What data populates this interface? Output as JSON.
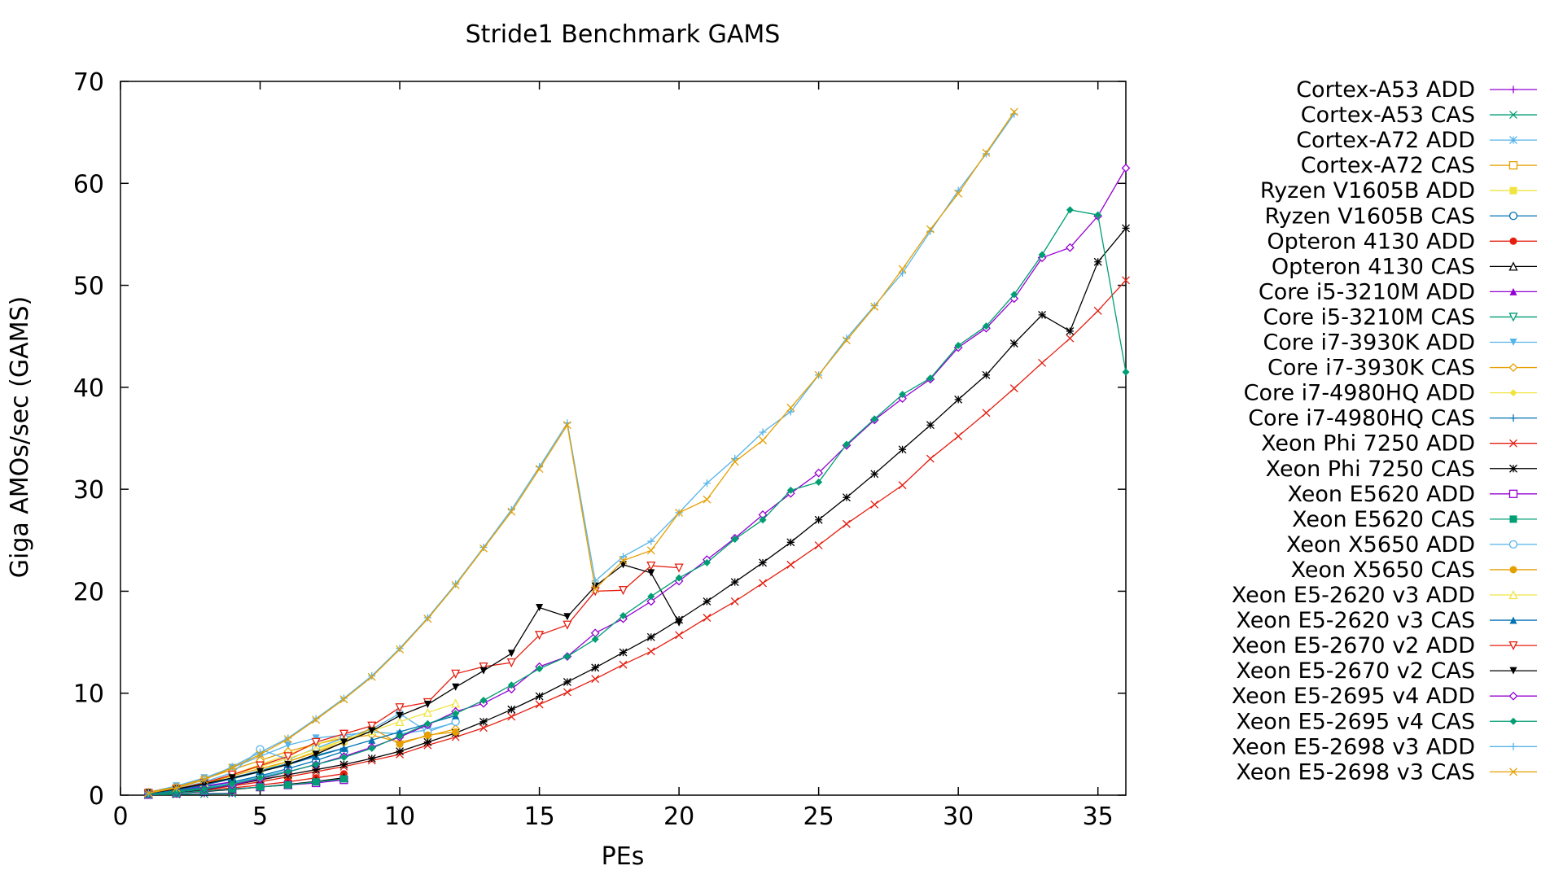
{
  "chart_data": {
    "type": "line",
    "title": "Stride1 Benchmark GAMS",
    "xlabel": "PEs",
    "ylabel": "Giga AMOs/sec (GAMS)",
    "xlim": [
      0,
      36
    ],
    "ylim": [
      0,
      70
    ],
    "xticks": [
      0,
      5,
      10,
      15,
      20,
      25,
      30,
      35
    ],
    "yticks": [
      0,
      10,
      20,
      30,
      40,
      50,
      60,
      70
    ],
    "grid": false,
    "legend_position": "right",
    "series": [
      {
        "name": "Cortex-A53 ADD",
        "color": "#9400d3",
        "marker": "plus",
        "x": [
          1,
          2,
          3,
          4
        ],
        "y": [
          0.05,
          0.1,
          0.15,
          0.2
        ]
      },
      {
        "name": "Cortex-A53 CAS",
        "color": "#009e73",
        "marker": "cross",
        "x": [
          1,
          2,
          3,
          4
        ],
        "y": [
          0.04,
          0.08,
          0.12,
          0.16
        ]
      },
      {
        "name": "Cortex-A72 ADD",
        "color": "#56b4e9",
        "marker": "star",
        "x": [
          1,
          2,
          3,
          4,
          5,
          6
        ],
        "y": [
          0.1,
          0.3,
          0.7,
          1.2,
          1.8,
          2.4
        ]
      },
      {
        "name": "Cortex-A72 CAS",
        "color": "#e69f00",
        "marker": "open-square",
        "x": [
          1,
          2,
          3,
          4,
          5,
          6
        ],
        "y": [
          0.1,
          0.3,
          0.6,
          1.0,
          1.5,
          2.0
        ]
      },
      {
        "name": "Ryzen V1605B ADD",
        "color": "#f0e442",
        "marker": "filled-square",
        "x": [
          1,
          2,
          3,
          4,
          5,
          6,
          7,
          8
        ],
        "y": [
          0.2,
          0.5,
          1.0,
          1.6,
          2.4,
          3.3,
          4.3,
          5.4
        ]
      },
      {
        "name": "Ryzen V1605B CAS",
        "color": "#0072b2",
        "marker": "open-circle",
        "x": [
          1,
          2,
          3,
          4,
          5,
          6,
          7,
          8
        ],
        "y": [
          0.15,
          0.4,
          0.8,
          1.3,
          1.9,
          2.6,
          3.4,
          4.3
        ]
      },
      {
        "name": "Opteron 4130 ADD",
        "color": "#e51e10",
        "marker": "filled-circle",
        "x": [
          1,
          2,
          3,
          4,
          5,
          6,
          7,
          8
        ],
        "y": [
          0.1,
          0.25,
          0.45,
          0.7,
          1.0,
          1.3,
          1.7,
          2.1
        ]
      },
      {
        "name": "Opteron 4130 CAS",
        "color": "#000000",
        "marker": "open-triangle",
        "x": [
          1,
          2,
          3,
          4,
          5,
          6,
          7,
          8
        ],
        "y": [
          0.08,
          0.2,
          0.35,
          0.55,
          0.8,
          1.05,
          1.35,
          1.7
        ]
      },
      {
        "name": "Core i5-3210M ADD",
        "color": "#9400d3",
        "marker": "filled-triangle",
        "x": [
          1,
          2,
          3,
          4
        ],
        "y": [
          0.2,
          0.5,
          0.9,
          1.3
        ]
      },
      {
        "name": "Core i5-3210M CAS",
        "color": "#009e73",
        "marker": "open-down-triangle",
        "x": [
          1,
          2,
          3,
          4
        ],
        "y": [
          0.15,
          0.4,
          0.7,
          1.0
        ]
      },
      {
        "name": "Core i7-3930K ADD",
        "color": "#56b4e9",
        "marker": "filled-down-triangle",
        "x": [
          1,
          2,
          3,
          4,
          5,
          6,
          7,
          8,
          9,
          10,
          11,
          12
        ],
        "y": [
          0.3,
          0.9,
          1.7,
          2.7,
          3.8,
          4.9,
          5.6,
          5.9,
          6.2,
          6.0,
          6.4,
          7.1
        ]
      },
      {
        "name": "Core i7-3930K CAS",
        "color": "#e69f00",
        "marker": "open-diamond",
        "x": [
          1,
          2,
          3,
          4,
          5,
          6,
          7,
          8,
          9,
          10,
          11,
          12
        ],
        "y": [
          0.3,
          0.8,
          1.6,
          2.5,
          3.4,
          4.3,
          5.0,
          5.6,
          5.9,
          5.2,
          5.8,
          6.5
        ]
      },
      {
        "name": "Core i7-4980HQ ADD",
        "color": "#f0e442",
        "marker": "filled-diamond",
        "x": [
          1,
          2,
          3,
          4,
          5,
          6,
          7,
          8
        ],
        "y": [
          0.2,
          0.6,
          1.2,
          2.0,
          3.0,
          4.0,
          5.0,
          5.8
        ]
      },
      {
        "name": "Core i7-4980HQ CAS",
        "color": "#0072b2",
        "marker": "plus",
        "x": [
          1,
          2,
          3,
          4,
          5,
          6,
          7,
          8
        ],
        "y": [
          0.15,
          0.5,
          1.0,
          1.7,
          2.4,
          3.1,
          3.9,
          4.6
        ]
      },
      {
        "name": "Xeon Phi 7250 ADD",
        "color": "#e51e10",
        "marker": "cross",
        "x": [
          1,
          2,
          3,
          4,
          5,
          6,
          7,
          8,
          9,
          10,
          11,
          12,
          13,
          14,
          15,
          16,
          17,
          18,
          19,
          20,
          21,
          22,
          23,
          24,
          25,
          26,
          27,
          28,
          29,
          30,
          31,
          32,
          33,
          34,
          35,
          36
        ],
        "y": [
          0.05,
          0.2,
          0.5,
          0.9,
          1.3,
          1.8,
          2.3,
          2.8,
          3.4,
          4.0,
          4.9,
          5.7,
          6.6,
          7.7,
          8.9,
          10.1,
          11.4,
          12.8,
          14.1,
          15.7,
          17.4,
          19.0,
          20.8,
          22.6,
          24.5,
          26.6,
          28.5,
          30.4,
          33.0,
          35.2,
          37.5,
          39.9,
          42.4,
          44.8,
          47.5,
          50.5
        ]
      },
      {
        "name": "Xeon Phi 7250 CAS",
        "color": "#000000",
        "marker": "star",
        "x": [
          1,
          2,
          3,
          4,
          5,
          6,
          7,
          8,
          9,
          10,
          11,
          12,
          13,
          14,
          15,
          16,
          17,
          18,
          19,
          20,
          21,
          22,
          23,
          24,
          25,
          26,
          27,
          28,
          29,
          30,
          31,
          32,
          33,
          34,
          35,
          36
        ],
        "y": [
          0.05,
          0.25,
          0.55,
          1.0,
          1.5,
          2.0,
          2.5,
          3.0,
          3.6,
          4.3,
          5.2,
          6.1,
          7.2,
          8.4,
          9.7,
          11.1,
          12.5,
          14.0,
          15.5,
          17.2,
          19.0,
          20.9,
          22.8,
          24.8,
          27.0,
          29.2,
          31.5,
          33.9,
          36.3,
          38.8,
          41.2,
          44.3,
          47.1,
          45.5,
          52.3,
          55.6
        ]
      },
      {
        "name": "Xeon E5620 ADD",
        "color": "#9400d3",
        "marker": "open-square",
        "x": [
          1,
          2,
          3,
          4,
          5,
          6,
          7,
          8
        ],
        "y": [
          0.05,
          0.2,
          0.4,
          0.6,
          0.8,
          1.0,
          1.2,
          1.5
        ]
      },
      {
        "name": "Xeon E5620 CAS",
        "color": "#009e73",
        "marker": "filled-square",
        "x": [
          1,
          2,
          3,
          4,
          5,
          6,
          7,
          8
        ],
        "y": [
          0.05,
          0.2,
          0.4,
          0.6,
          0.8,
          1.0,
          1.3,
          1.6
        ]
      },
      {
        "name": "Xeon X5650 ADD",
        "color": "#56b4e9",
        "marker": "open-circle",
        "x": [
          1,
          2,
          3,
          4,
          5,
          6,
          7,
          8,
          9,
          10,
          11,
          12
        ],
        "y": [
          0.2,
          0.6,
          1.3,
          2.2,
          4.5,
          3.5,
          4.6,
          5.6,
          6.5,
          8.0,
          6.2,
          7.2
        ]
      },
      {
        "name": "Xeon X5650 CAS",
        "color": "#e69f00",
        "marker": "filled-circle",
        "x": [
          1,
          2,
          3,
          4,
          5,
          6,
          7,
          8,
          9,
          10,
          11,
          12
        ],
        "y": [
          0.2,
          0.5,
          1.1,
          1.9,
          2.6,
          3.3,
          4.2,
          5.2,
          6.6,
          5.0,
          5.9,
          6.2
        ]
      },
      {
        "name": "Xeon E5-2620 v3 ADD",
        "color": "#f0e442",
        "marker": "open-triangle",
        "x": [
          1,
          2,
          3,
          4,
          5,
          6,
          7,
          8,
          9,
          10,
          11,
          12
        ],
        "y": [
          0.2,
          0.6,
          1.2,
          2.0,
          2.8,
          3.6,
          4.5,
          5.4,
          6.3,
          7.2,
          8.1,
          9.0
        ]
      },
      {
        "name": "Xeon E5-2620 v3 CAS",
        "color": "#0072b2",
        "marker": "filled-triangle",
        "x": [
          1,
          2,
          3,
          4,
          5,
          6,
          7,
          8,
          9,
          10,
          11,
          12
        ],
        "y": [
          0.15,
          0.5,
          1.0,
          1.6,
          2.3,
          3.0,
          3.8,
          4.6,
          5.4,
          6.2,
          7.0,
          7.8
        ]
      },
      {
        "name": "Xeon E5-2670 v2 ADD",
        "color": "#e51e10",
        "marker": "open-down-triangle",
        "x": [
          1,
          2,
          3,
          4,
          5,
          6,
          7,
          8,
          9,
          10,
          11,
          12,
          13,
          14,
          15,
          16,
          17,
          18,
          19,
          20
        ],
        "y": [
          0.2,
          0.6,
          1.2,
          2.0,
          2.9,
          3.8,
          5.2,
          6.0,
          6.8,
          8.6,
          9.1,
          11.9,
          12.6,
          13.0,
          15.7,
          16.7,
          20.0,
          20.1,
          22.5,
          22.3
        ]
      },
      {
        "name": "Xeon E5-2670 v2 CAS",
        "color": "#000000",
        "marker": "filled-down-triangle",
        "x": [
          1,
          2,
          3,
          4,
          5,
          6,
          7,
          8,
          9,
          10,
          11,
          12,
          13,
          14,
          15,
          16,
          17,
          18,
          19,
          20
        ],
        "y": [
          0.2,
          0.6,
          1.1,
          1.7,
          2.3,
          3.0,
          4.0,
          5.2,
          6.3,
          7.8,
          8.9,
          10.6,
          12.2,
          13.9,
          18.4,
          17.5,
          20.5,
          22.6,
          21.8,
          16.9
        ]
      },
      {
        "name": "Xeon E5-2695 v4 ADD",
        "color": "#9400d3",
        "marker": "open-diamond",
        "x": [
          1,
          2,
          3,
          4,
          5,
          6,
          7,
          8,
          9,
          10,
          11,
          12,
          13,
          14,
          15,
          16,
          17,
          18,
          19,
          20,
          21,
          22,
          23,
          24,
          25,
          26,
          27,
          28,
          29,
          30,
          31,
          32,
          33,
          34,
          35,
          36
        ],
        "y": [
          0.1,
          0.3,
          0.6,
          1.0,
          1.6,
          2.3,
          3.0,
          3.8,
          4.7,
          5.7,
          6.9,
          8.2,
          9.0,
          10.4,
          12.6,
          13.6,
          15.9,
          17.3,
          19.0,
          21.0,
          23.1,
          25.2,
          27.5,
          29.6,
          31.6,
          34.3,
          36.8,
          38.9,
          40.8,
          43.9,
          45.8,
          48.7,
          52.7,
          53.7,
          56.8,
          61.5
        ]
      },
      {
        "name": "Xeon E5-2695 v4 CAS",
        "color": "#009e73",
        "marker": "filled-diamond",
        "x": [
          1,
          2,
          3,
          4,
          5,
          6,
          7,
          8,
          9,
          10,
          11,
          12,
          13,
          14,
          15,
          16,
          17,
          18,
          19,
          20,
          21,
          22,
          23,
          24,
          25,
          26,
          27,
          28,
          29,
          30,
          31,
          32,
          33,
          34,
          35,
          36
        ],
        "y": [
          0.1,
          0.3,
          0.6,
          1.1,
          1.7,
          2.3,
          3.0,
          3.7,
          4.6,
          5.8,
          7.0,
          8.0,
          9.3,
          10.8,
          12.4,
          13.6,
          15.3,
          17.6,
          19.5,
          21.3,
          22.8,
          25.1,
          27.0,
          29.9,
          30.7,
          34.4,
          36.9,
          39.3,
          40.9,
          44.1,
          46.0,
          49.1,
          53.0,
          57.4,
          56.9,
          41.5
        ]
      },
      {
        "name": "Xeon E5-2698 v3 ADD",
        "color": "#56b4e9",
        "marker": "plus",
        "x": [
          1,
          2,
          3,
          4,
          5,
          6,
          7,
          8,
          9,
          10,
          11,
          12,
          13,
          14,
          15,
          16,
          17,
          18,
          19,
          20,
          21,
          22,
          23,
          24,
          25,
          26,
          27,
          28,
          29,
          30,
          31,
          32
        ],
        "y": [
          0.2,
          0.7,
          1.5,
          2.8,
          4.2,
          5.6,
          7.5,
          9.5,
          11.7,
          14.4,
          17.4,
          20.7,
          24.3,
          28.0,
          32.2,
          36.5,
          21.0,
          23.4,
          24.9,
          27.7,
          30.6,
          33.0,
          35.6,
          37.6,
          41.2,
          44.8,
          48.0,
          51.2,
          55.3,
          59.3,
          62.9,
          66.8
        ]
      },
      {
        "name": "Xeon E5-2698 v3 CAS",
        "color": "#e69f00",
        "marker": "cross",
        "x": [
          1,
          2,
          3,
          4,
          5,
          6,
          7,
          8,
          9,
          10,
          11,
          12,
          13,
          14,
          15,
          16,
          17,
          18,
          19,
          20,
          21,
          22,
          23,
          24,
          25,
          26,
          27,
          28,
          29,
          30,
          31,
          32
        ],
        "y": [
          0.2,
          0.7,
          1.5,
          2.7,
          4.0,
          5.5,
          7.4,
          9.4,
          11.6,
          14.3,
          17.3,
          20.6,
          24.2,
          27.8,
          32.0,
          36.3,
          20.2,
          23.0,
          24.0,
          27.7,
          29.0,
          32.7,
          34.8,
          38.0,
          41.2,
          44.6,
          47.9,
          51.6,
          55.5,
          59.0,
          63.0,
          67.0
        ]
      }
    ]
  }
}
